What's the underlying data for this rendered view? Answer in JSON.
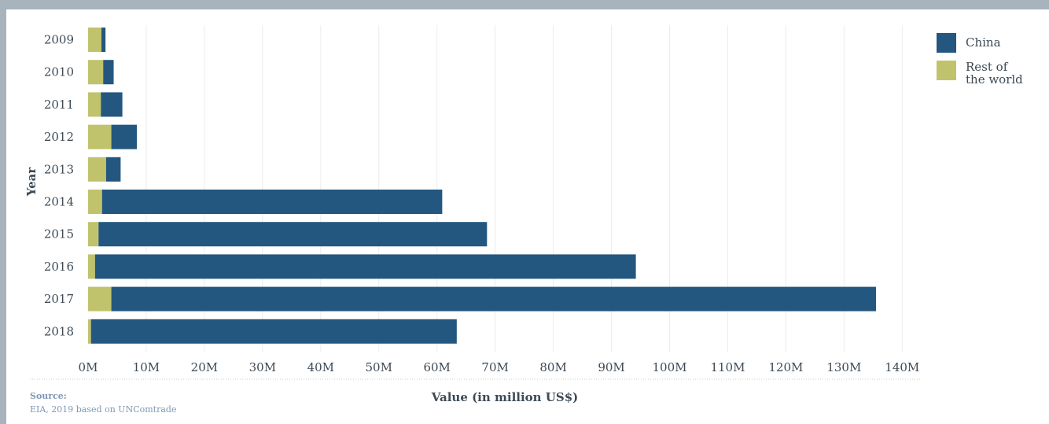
{
  "chart_data": {
    "type": "bar",
    "orientation": "horizontal",
    "stacked": true,
    "categories": [
      "2009",
      "2010",
      "2011",
      "2012",
      "2013",
      "2014",
      "2015",
      "2016",
      "2017",
      "2018"
    ],
    "series": [
      {
        "name": "Rest of the world",
        "color": "#c0c36c",
        "values": [
          2.3,
          2.6,
          2.2,
          4.0,
          3.1,
          2.4,
          1.8,
          1.2,
          4.0,
          0.5
        ]
      },
      {
        "name": "China",
        "color": "#24577f",
        "values": [
          0.7,
          1.8,
          3.7,
          4.4,
          2.5,
          58.5,
          66.8,
          93.0,
          131.5,
          62.9
        ]
      }
    ],
    "xlabel": "Value (in million US$)",
    "ylabel": "Year",
    "xlim": [
      0,
      140
    ],
    "x_ticks": [
      "0M",
      "10M",
      "20M",
      "30M",
      "40M",
      "50M",
      "60M",
      "70M",
      "80M",
      "90M",
      "100M",
      "110M",
      "120M",
      "130M",
      "140M"
    ],
    "grid": "vertical",
    "legend_position": "right"
  },
  "legend": [
    {
      "label": "China",
      "color": "#24577f"
    },
    {
      "label": "Rest of the world",
      "color": "#c0c36c"
    }
  ],
  "source": {
    "title": "Source:",
    "text": "EIA, 2019 based on UNComtrade"
  }
}
